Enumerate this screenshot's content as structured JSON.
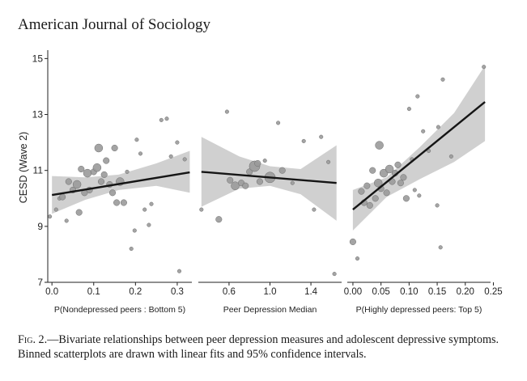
{
  "header": {
    "journal": "American Journal of Sociology"
  },
  "figure": {
    "caption_label": "Fig. 2.",
    "caption_text": "—Bivariate relationships between peer depression measures and adolescent depressive symptoms. Binned scatterplots are drawn with linear fits and 95% confidence intervals.",
    "y_label": "CESD (Wave 2)"
  },
  "colors": {
    "ci_band": "#d0d0d0",
    "points": "#9a9a9a",
    "point_edge": "#6e6e6e",
    "fit_line": "#151515",
    "axis": "#222222"
  },
  "chart_data": [
    {
      "type": "scatter",
      "xlabel": "P(Nondepressed peers : Bottom 5)",
      "ylabel": "CESD (Wave 2)",
      "xlim": [
        -0.01,
        0.335
      ],
      "ylim": [
        7,
        15.3
      ],
      "xticks": [
        0.0,
        0.1,
        0.2,
        0.3
      ],
      "xtick_labels": [
        "0.0",
        "0.1",
        "0.2",
        "0.3"
      ],
      "yticks": [
        7,
        9,
        11,
        13,
        15
      ],
      "ytick_labels": [
        "7",
        "9",
        "11",
        "13",
        "15"
      ],
      "fit": {
        "x": [
          0.0,
          0.33
        ],
        "y": [
          10.12,
          10.93
        ]
      },
      "ci": {
        "x": [
          0.0,
          0.08,
          0.16,
          0.25,
          0.33
        ],
        "lower": [
          9.45,
          9.95,
          10.3,
          10.45,
          10.2
        ],
        "upper": [
          10.8,
          10.75,
          10.85,
          11.25,
          11.7
        ]
      },
      "points": [
        {
          "x": -0.005,
          "y": 9.35,
          "s": 1
        },
        {
          "x": 0.01,
          "y": 9.6,
          "s": 1
        },
        {
          "x": 0.018,
          "y": 10.0,
          "s": 1
        },
        {
          "x": 0.025,
          "y": 10.05,
          "s": 2
        },
        {
          "x": 0.035,
          "y": 9.2,
          "s": 1
        },
        {
          "x": 0.04,
          "y": 10.6,
          "s": 2
        },
        {
          "x": 0.05,
          "y": 10.3,
          "s": 2
        },
        {
          "x": 0.06,
          "y": 10.5,
          "s": 3
        },
        {
          "x": 0.065,
          "y": 9.5,
          "s": 2
        },
        {
          "x": 0.07,
          "y": 11.05,
          "s": 2
        },
        {
          "x": 0.078,
          "y": 10.2,
          "s": 2
        },
        {
          "x": 0.085,
          "y": 10.9,
          "s": 3
        },
        {
          "x": 0.09,
          "y": 10.3,
          "s": 2
        },
        {
          "x": 0.1,
          "y": 10.95,
          "s": 2
        },
        {
          "x": 0.108,
          "y": 11.1,
          "s": 3
        },
        {
          "x": 0.112,
          "y": 11.8,
          "s": 3
        },
        {
          "x": 0.118,
          "y": 10.6,
          "s": 2
        },
        {
          "x": 0.125,
          "y": 10.85,
          "s": 2
        },
        {
          "x": 0.13,
          "y": 11.35,
          "s": 2
        },
        {
          "x": 0.138,
          "y": 10.5,
          "s": 2
        },
        {
          "x": 0.145,
          "y": 10.2,
          "s": 2
        },
        {
          "x": 0.15,
          "y": 11.8,
          "s": 2
        },
        {
          "x": 0.155,
          "y": 9.85,
          "s": 2
        },
        {
          "x": 0.163,
          "y": 10.6,
          "s": 3
        },
        {
          "x": 0.172,
          "y": 9.85,
          "s": 2
        },
        {
          "x": 0.18,
          "y": 10.95,
          "s": 1
        },
        {
          "x": 0.19,
          "y": 8.2,
          "s": 1
        },
        {
          "x": 0.198,
          "y": 8.85,
          "s": 1
        },
        {
          "x": 0.203,
          "y": 12.1,
          "s": 1
        },
        {
          "x": 0.212,
          "y": 11.6,
          "s": 1
        },
        {
          "x": 0.222,
          "y": 9.6,
          "s": 1
        },
        {
          "x": 0.232,
          "y": 9.05,
          "s": 1
        },
        {
          "x": 0.238,
          "y": 9.8,
          "s": 1
        },
        {
          "x": 0.262,
          "y": 12.8,
          "s": 1
        },
        {
          "x": 0.275,
          "y": 12.85,
          "s": 1
        },
        {
          "x": 0.285,
          "y": 11.5,
          "s": 1
        },
        {
          "x": 0.3,
          "y": 12.0,
          "s": 1
        },
        {
          "x": 0.305,
          "y": 7.4,
          "s": 1
        },
        {
          "x": 0.318,
          "y": 11.4,
          "s": 1
        }
      ]
    },
    {
      "type": "scatter",
      "xlabel": "Peer Depression Median",
      "ylabel": "",
      "xlim": [
        0.3,
        1.7
      ],
      "ylim": [
        7,
        15.3
      ],
      "xticks": [
        0.6,
        1.0,
        1.4
      ],
      "xtick_labels": [
        "0.6",
        "1.0",
        "1.4"
      ],
      "yticks": [],
      "ytick_labels": [],
      "fit": {
        "x": [
          0.33,
          1.65
        ],
        "y": [
          10.95,
          10.55
        ]
      },
      "ci": {
        "x": [
          0.33,
          0.7,
          1.0,
          1.3,
          1.65
        ],
        "lower": [
          9.7,
          10.35,
          10.45,
          10.15,
          9.2
        ],
        "upper": [
          12.2,
          11.5,
          11.15,
          11.05,
          11.9
        ]
      },
      "points": [
        {
          "x": 0.33,
          "y": 9.6,
          "s": 1
        },
        {
          "x": 0.5,
          "y": 9.25,
          "s": 2
        },
        {
          "x": 0.58,
          "y": 13.1,
          "s": 1
        },
        {
          "x": 0.61,
          "y": 10.65,
          "s": 2
        },
        {
          "x": 0.66,
          "y": 10.45,
          "s": 3
        },
        {
          "x": 0.72,
          "y": 10.55,
          "s": 2
        },
        {
          "x": 0.76,
          "y": 10.45,
          "s": 2
        },
        {
          "x": 0.8,
          "y": 10.95,
          "s": 2
        },
        {
          "x": 0.85,
          "y": 11.15,
          "s": 4
        },
        {
          "x": 0.88,
          "y": 11.25,
          "s": 2
        },
        {
          "x": 0.9,
          "y": 10.6,
          "s": 2
        },
        {
          "x": 0.95,
          "y": 11.35,
          "s": 1
        },
        {
          "x": 1.0,
          "y": 10.75,
          "s": 4
        },
        {
          "x": 1.08,
          "y": 12.7,
          "s": 1
        },
        {
          "x": 1.12,
          "y": 11.0,
          "s": 2
        },
        {
          "x": 1.22,
          "y": 10.55,
          "s": 1
        },
        {
          "x": 1.33,
          "y": 12.05,
          "s": 1
        },
        {
          "x": 1.43,
          "y": 9.6,
          "s": 1
        },
        {
          "x": 1.5,
          "y": 12.2,
          "s": 1
        },
        {
          "x": 1.57,
          "y": 11.3,
          "s": 1
        },
        {
          "x": 1.63,
          "y": 7.3,
          "s": 1
        }
      ]
    },
    {
      "type": "scatter",
      "xlabel": "P(Highly depressed peers: Top 5)",
      "ylabel": "",
      "xlim": [
        -0.01,
        0.245
      ],
      "ylim": [
        7,
        15.3
      ],
      "xticks": [
        0.0,
        0.05,
        0.1,
        0.15,
        0.2,
        0.25
      ],
      "xtick_labels": [
        "0.00",
        "0.05",
        "0.10",
        "0.15",
        "0.20",
        "0.25"
      ],
      "yticks": [],
      "ytick_labels": [],
      "fit": {
        "x": [
          0.0,
          0.235
        ],
        "y": [
          9.6,
          13.45
        ]
      },
      "ci": {
        "x": [
          0.0,
          0.06,
          0.12,
          0.18,
          0.235
        ],
        "lower": [
          8.85,
          10.05,
          10.7,
          11.3,
          12.05
        ],
        "upper": [
          10.3,
          10.75,
          11.85,
          13.05,
          14.75
        ]
      },
      "points": [
        {
          "x": 0.0,
          "y": 8.45,
          "s": 2
        },
        {
          "x": 0.008,
          "y": 7.85,
          "s": 1
        },
        {
          "x": 0.015,
          "y": 10.25,
          "s": 2
        },
        {
          "x": 0.02,
          "y": 9.85,
          "s": 2
        },
        {
          "x": 0.025,
          "y": 10.45,
          "s": 2
        },
        {
          "x": 0.03,
          "y": 9.75,
          "s": 2
        },
        {
          "x": 0.035,
          "y": 11.0,
          "s": 2
        },
        {
          "x": 0.04,
          "y": 10.0,
          "s": 2
        },
        {
          "x": 0.045,
          "y": 10.55,
          "s": 3
        },
        {
          "x": 0.047,
          "y": 11.9,
          "s": 3
        },
        {
          "x": 0.05,
          "y": 10.35,
          "s": 2
        },
        {
          "x": 0.055,
          "y": 10.9,
          "s": 3
        },
        {
          "x": 0.06,
          "y": 10.2,
          "s": 2
        },
        {
          "x": 0.065,
          "y": 11.05,
          "s": 3
        },
        {
          "x": 0.07,
          "y": 10.6,
          "s": 2
        },
        {
          "x": 0.075,
          "y": 10.9,
          "s": 2
        },
        {
          "x": 0.08,
          "y": 11.2,
          "s": 2
        },
        {
          "x": 0.085,
          "y": 10.55,
          "s": 2
        },
        {
          "x": 0.09,
          "y": 10.75,
          "s": 2
        },
        {
          "x": 0.095,
          "y": 10.0,
          "s": 2
        },
        {
          "x": 0.1,
          "y": 13.2,
          "s": 1
        },
        {
          "x": 0.105,
          "y": 11.4,
          "s": 1
        },
        {
          "x": 0.11,
          "y": 10.3,
          "s": 1
        },
        {
          "x": 0.115,
          "y": 13.65,
          "s": 1
        },
        {
          "x": 0.118,
          "y": 10.1,
          "s": 1
        },
        {
          "x": 0.125,
          "y": 12.4,
          "s": 1
        },
        {
          "x": 0.135,
          "y": 11.7,
          "s": 1
        },
        {
          "x": 0.15,
          "y": 9.75,
          "s": 1
        },
        {
          "x": 0.152,
          "y": 12.55,
          "s": 1
        },
        {
          "x": 0.156,
          "y": 8.25,
          "s": 1
        },
        {
          "x": 0.16,
          "y": 14.25,
          "s": 1
        },
        {
          "x": 0.175,
          "y": 11.5,
          "s": 1
        },
        {
          "x": 0.233,
          "y": 14.7,
          "s": 1
        }
      ]
    }
  ]
}
